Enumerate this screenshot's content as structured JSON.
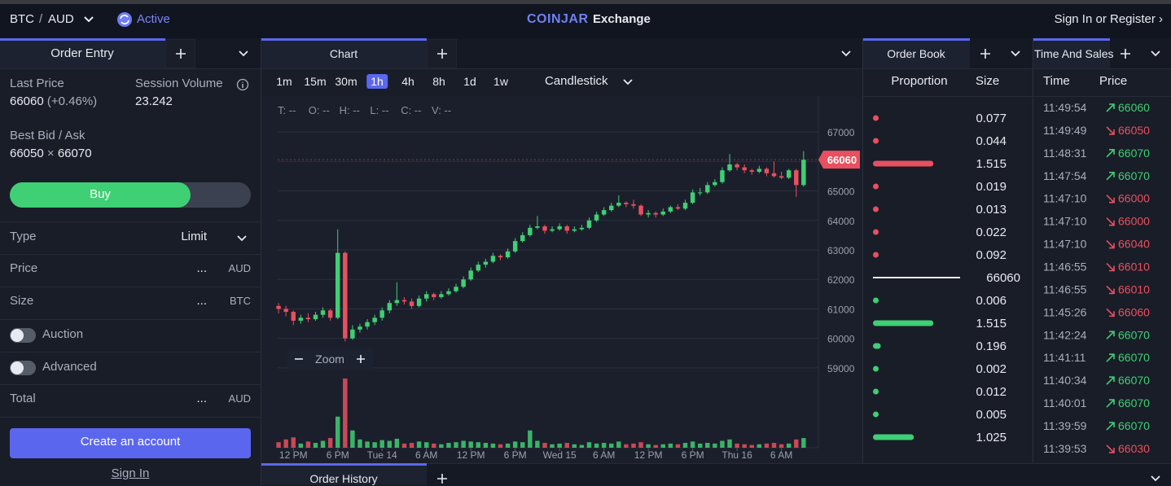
{
  "header": {
    "base": "BTC",
    "separator": "/",
    "quote": "AUD",
    "status": "Active",
    "brand": "COINJAR",
    "product": "Exchange",
    "sign_in": "Sign In or Register ›"
  },
  "order_entry": {
    "tab": "Order Entry",
    "last_price_label": "Last Price",
    "last_price": "66060",
    "change": "(+0.46%)",
    "volume_label": "Session Volume",
    "volume": "23.242",
    "bid_ask_label": "Best Bid / Ask",
    "bid": "66050",
    "times": "×",
    "ask": "66070",
    "buy": "Buy",
    "type_label": "Type",
    "type_value": "Limit",
    "price_label": "Price",
    "price_placeholder": "...",
    "price_unit": "AUD",
    "size_label": "Size",
    "size_placeholder": "...",
    "size_unit": "BTC",
    "auction": "Auction",
    "advanced": "Advanced",
    "total_label": "Total",
    "total_placeholder": "...",
    "total_unit": "AUD",
    "create": "Create an account",
    "sign_in": "Sign In"
  },
  "chart": {
    "tab": "Chart",
    "intervals": [
      "1m",
      "15m",
      "30m",
      "1h",
      "4h",
      "8h",
      "1d",
      "1w"
    ],
    "active_interval": 3,
    "style": "Candlestick",
    "ohlc_legend": [
      "T: --",
      "O: --",
      "H: --",
      "L: --",
      "C: --",
      "V: --"
    ],
    "zoom": "Zoom",
    "type": "candlestick",
    "grid": true,
    "up_color": "#3fcf74",
    "down_color": "#e9505f",
    "current_price": 66060,
    "xlim": [
      -1,
      73
    ],
    "xticks": [
      {
        "value": 2,
        "label": "12 PM"
      },
      {
        "value": 8,
        "label": "6 PM"
      },
      {
        "value": 14,
        "label": "Tue 14"
      },
      {
        "value": 20,
        "label": "6 AM"
      },
      {
        "value": 26,
        "label": "12 PM"
      },
      {
        "value": 32,
        "label": "6 PM"
      },
      {
        "value": 38,
        "label": "Wed 15"
      },
      {
        "value": 44,
        "label": "6 AM"
      },
      {
        "value": 50,
        "label": "12 PM"
      },
      {
        "value": 56,
        "label": "6 PM"
      },
      {
        "value": 62,
        "label": "Thu 16"
      },
      {
        "value": 68,
        "label": "6 AM"
      }
    ],
    "ylim": [
      58500,
      67500
    ],
    "yticks": [
      59000,
      60000,
      61000,
      62000,
      63000,
      64000,
      65000,
      66000,
      67000
    ],
    "x": [
      0,
      1,
      2,
      3,
      4,
      5,
      6,
      7,
      8,
      9,
      10,
      11,
      12,
      13,
      14,
      15,
      16,
      17,
      18,
      19,
      20,
      21,
      22,
      23,
      24,
      25,
      26,
      27,
      28,
      29,
      30,
      31,
      32,
      33,
      34,
      35,
      36,
      37,
      38,
      39,
      40,
      41,
      42,
      43,
      44,
      45,
      46,
      47,
      48,
      49,
      50,
      51,
      52,
      53,
      54,
      55,
      56,
      57,
      58,
      59,
      60,
      61,
      62,
      63,
      64,
      65,
      66,
      67,
      68,
      69,
      70,
      71
    ],
    "candles": [
      [
        61100,
        61200,
        60850,
        61000,
        8
      ],
      [
        61000,
        61100,
        60750,
        60900,
        12
      ],
      [
        60900,
        60950,
        60450,
        60600,
        15
      ],
      [
        60600,
        60800,
        60500,
        60700,
        6
      ],
      [
        60700,
        60850,
        60550,
        60650,
        9
      ],
      [
        60650,
        60900,
        60600,
        60800,
        7
      ],
      [
        60800,
        61050,
        60700,
        60950,
        10
      ],
      [
        60950,
        61000,
        60600,
        60700,
        14
      ],
      [
        60700,
        63700,
        60650,
        62900,
        45
      ],
      [
        62900,
        62950,
        59900,
        60000,
        100
      ],
      [
        60000,
        60450,
        59950,
        60300,
        25
      ],
      [
        60300,
        60500,
        60200,
        60400,
        12
      ],
      [
        60400,
        60650,
        60300,
        60550,
        9
      ],
      [
        60550,
        60800,
        60450,
        60700,
        8
      ],
      [
        60700,
        61050,
        60600,
        60950,
        11
      ],
      [
        60950,
        61300,
        60850,
        61200,
        10
      ],
      [
        61200,
        61900,
        61100,
        61300,
        13
      ],
      [
        61300,
        61400,
        61150,
        61250,
        6
      ],
      [
        61250,
        61350,
        61000,
        61100,
        7
      ],
      [
        61100,
        61450,
        61050,
        61350,
        9
      ],
      [
        61350,
        61600,
        61250,
        61500,
        8
      ],
      [
        61500,
        61550,
        61300,
        61400,
        6
      ],
      [
        61400,
        61600,
        61350,
        61500,
        5
      ],
      [
        61500,
        61700,
        61450,
        61600,
        7
      ],
      [
        61600,
        61850,
        61550,
        61750,
        8
      ],
      [
        61750,
        62100,
        61700,
        62000,
        10
      ],
      [
        62000,
        62400,
        61950,
        62300,
        9
      ],
      [
        62300,
        62600,
        62250,
        62500,
        8
      ],
      [
        62500,
        62700,
        62400,
        62600,
        7
      ],
      [
        62600,
        62900,
        62550,
        62800,
        6
      ],
      [
        62800,
        62850,
        62650,
        62750,
        5
      ],
      [
        62750,
        63050,
        62700,
        62950,
        6
      ],
      [
        62950,
        63400,
        62900,
        63300,
        9
      ],
      [
        63300,
        63600,
        63250,
        63500,
        8
      ],
      [
        63500,
        63850,
        63450,
        63750,
        25
      ],
      [
        63750,
        64150,
        63700,
        63800,
        10
      ],
      [
        63800,
        63850,
        63550,
        63650,
        7
      ],
      [
        63650,
        63800,
        63600,
        63700,
        5
      ],
      [
        63700,
        63900,
        63650,
        63800,
        6
      ],
      [
        63800,
        63850,
        63550,
        63650,
        7
      ],
      [
        63650,
        63800,
        63600,
        63700,
        5
      ],
      [
        63700,
        63850,
        63650,
        63750,
        4
      ],
      [
        63750,
        64100,
        63700,
        64000,
        8
      ],
      [
        64000,
        64300,
        63950,
        64200,
        6
      ],
      [
        64200,
        64450,
        64150,
        64350,
        7
      ],
      [
        64350,
        64600,
        64300,
        64500,
        6
      ],
      [
        64500,
        64850,
        64450,
        64600,
        9
      ],
      [
        64600,
        64650,
        64450,
        64550,
        5
      ],
      [
        64550,
        64700,
        64400,
        64500,
        6
      ],
      [
        64500,
        64550,
        64150,
        64200,
        8
      ],
      [
        64200,
        64350,
        64100,
        64250,
        5
      ],
      [
        64250,
        64300,
        64100,
        64200,
        4
      ],
      [
        64200,
        64400,
        64150,
        64300,
        5
      ],
      [
        64300,
        64500,
        64250,
        64450,
        6
      ],
      [
        64450,
        64550,
        64350,
        64400,
        5
      ],
      [
        64400,
        64700,
        64350,
        64600,
        7
      ],
      [
        64600,
        65050,
        64550,
        64950,
        9
      ],
      [
        64950,
        65100,
        64850,
        64950,
        6
      ],
      [
        64950,
        65300,
        64900,
        65200,
        7
      ],
      [
        65200,
        65400,
        65150,
        65300,
        6
      ],
      [
        65300,
        65800,
        65250,
        65700,
        10
      ],
      [
        65700,
        66250,
        65650,
        65900,
        12
      ],
      [
        65900,
        65950,
        65700,
        65800,
        6
      ],
      [
        65800,
        65900,
        65600,
        65700,
        5
      ],
      [
        65700,
        65750,
        65550,
        65650,
        4
      ],
      [
        65650,
        65850,
        65600,
        65750,
        5
      ],
      [
        65750,
        65800,
        65500,
        65600,
        6
      ],
      [
        65600,
        66000,
        65450,
        65500,
        7
      ],
      [
        65500,
        65650,
        65400,
        65450,
        5
      ],
      [
        65450,
        65750,
        65400,
        65700,
        6
      ],
      [
        65700,
        65750,
        64800,
        65200,
        12
      ],
      [
        65200,
        66350,
        65150,
        66060,
        14
      ]
    ]
  },
  "order_book": {
    "tab": "Order Book",
    "col_proportion": "Proportion",
    "col_size": "Size",
    "asks": [
      0.077,
      0.044,
      1.515,
      0.019,
      0.013,
      0.022,
      0.092
    ],
    "mid": 66060,
    "bids": [
      0.006,
      1.515,
      0.196,
      0.002,
      0.012,
      0.005,
      1.025
    ],
    "ask_color": "#e9505f",
    "bid_color": "#3fcf74"
  },
  "time_and_sales": {
    "tab": "Time And Sales",
    "col_time": "Time",
    "col_price": "Price",
    "rows": [
      {
        "time": "11:49:54",
        "price": 66060,
        "side": "up"
      },
      {
        "time": "11:49:49",
        "price": 66050,
        "side": "down"
      },
      {
        "time": "11:48:31",
        "price": 66070,
        "side": "up"
      },
      {
        "time": "11:47:54",
        "price": 66070,
        "side": "up"
      },
      {
        "time": "11:47:10",
        "price": 66000,
        "side": "down"
      },
      {
        "time": "11:47:10",
        "price": 66000,
        "side": "down"
      },
      {
        "time": "11:47:10",
        "price": 66040,
        "side": "down"
      },
      {
        "time": "11:46:55",
        "price": 66010,
        "side": "down"
      },
      {
        "time": "11:46:55",
        "price": 66010,
        "side": "down"
      },
      {
        "time": "11:45:26",
        "price": 66060,
        "side": "down"
      },
      {
        "time": "11:42:24",
        "price": 66070,
        "side": "up"
      },
      {
        "time": "11:41:11",
        "price": 66070,
        "side": "up"
      },
      {
        "time": "11:40:34",
        "price": 66070,
        "side": "up"
      },
      {
        "time": "11:40:01",
        "price": 66070,
        "side": "up"
      },
      {
        "time": "11:39:59",
        "price": 66070,
        "side": "up"
      },
      {
        "time": "11:39:53",
        "price": 66030,
        "side": "down"
      }
    ]
  },
  "order_history": {
    "tab": "Order History"
  }
}
